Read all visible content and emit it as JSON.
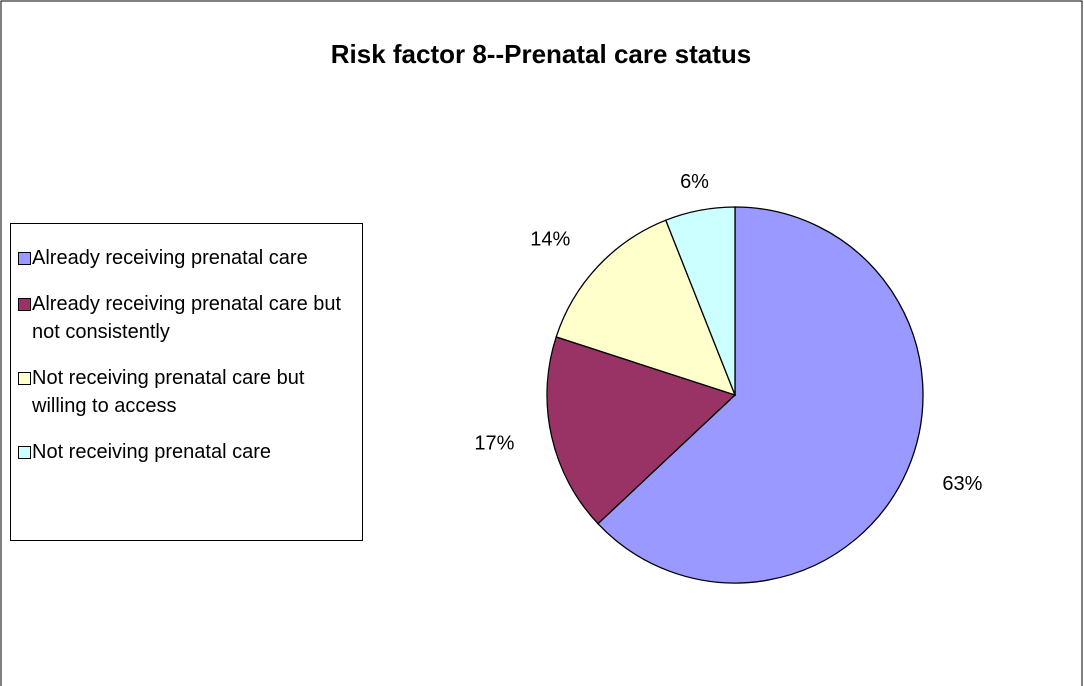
{
  "chart_data": {
    "type": "pie",
    "title": "Risk factor 8--Prenatal care status",
    "categories": [
      "Already receiving prenatal care",
      "Already receiving prenatal care but not consistently",
      "Not receiving prenatal care but willing to access",
      "Not receiving prenatal care"
    ],
    "values": [
      63,
      17,
      14,
      6
    ],
    "value_labels": [
      "63%",
      "17%",
      "14%",
      "6%"
    ],
    "colors": [
      "#9999ff",
      "#993366",
      "#ffffcc",
      "#ccffff"
    ],
    "legend": "left"
  }
}
